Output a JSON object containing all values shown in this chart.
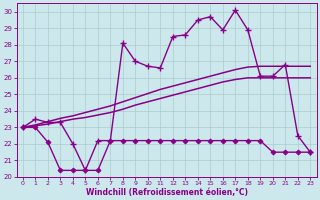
{
  "background_color": "#cde8ec",
  "grid_color": "#aacccc",
  "line_color": "#880088",
  "xlim": [
    -0.5,
    23.5
  ],
  "ylim": [
    20,
    30.5
  ],
  "xlabel": "Windchill (Refroidissement éolien,°C)",
  "yticks": [
    20,
    21,
    22,
    23,
    24,
    25,
    26,
    27,
    28,
    29,
    30
  ],
  "xticks": [
    0,
    1,
    2,
    3,
    4,
    5,
    6,
    7,
    8,
    9,
    10,
    11,
    12,
    13,
    14,
    15,
    16,
    17,
    18,
    19,
    20,
    21,
    22,
    23
  ],
  "series": [
    {
      "x": [
        0,
        1,
        2,
        3,
        4,
        5,
        6,
        7,
        8,
        9,
        10,
        11,
        12,
        13,
        14,
        15,
        16,
        17,
        18,
        19,
        20,
        21,
        22,
        23
      ],
      "y": [
        23.0,
        23.5,
        23.3,
        23.3,
        22.0,
        20.4,
        22.2,
        22.2,
        28.1,
        27.0,
        26.7,
        26.6,
        28.5,
        28.6,
        29.5,
        29.7,
        28.9,
        30.1,
        28.9,
        26.1,
        26.1,
        26.8,
        22.5,
        21.5
      ],
      "marker": "+",
      "linewidth": 1.0,
      "markersize": 4,
      "markeredgewidth": 1.0
    },
    {
      "x": [
        0,
        1,
        2,
        3,
        4,
        5,
        6,
        7,
        8,
        9,
        10,
        11,
        12,
        13,
        14,
        15,
        16,
        17,
        18,
        19,
        20,
        21,
        22,
        23
      ],
      "y": [
        23.0,
        23.0,
        22.1,
        20.4,
        20.4,
        20.4,
        20.4,
        22.2,
        22.2,
        22.2,
        22.2,
        22.2,
        22.2,
        22.2,
        22.2,
        22.2,
        22.2,
        22.2,
        22.2,
        22.2,
        21.5,
        21.5,
        21.5,
        21.5
      ],
      "marker": "D",
      "linewidth": 1.0,
      "markersize": 2.5,
      "markeredgewidth": 0.7
    },
    {
      "x": [
        0,
        1,
        2,
        3,
        4,
        5,
        6,
        7,
        8,
        9,
        10,
        11,
        12,
        13,
        14,
        15,
        16,
        17,
        18,
        19,
        20,
        21,
        22,
        23
      ],
      "y": [
        23.0,
        23.1,
        23.2,
        23.35,
        23.5,
        23.6,
        23.75,
        23.9,
        24.1,
        24.35,
        24.55,
        24.75,
        24.95,
        25.15,
        25.35,
        25.55,
        25.75,
        25.9,
        26.0,
        26.0,
        26.0,
        26.0,
        26.0,
        26.0
      ],
      "marker": null,
      "linewidth": 1.1,
      "markersize": 0,
      "markeredgewidth": 0
    },
    {
      "x": [
        0,
        1,
        2,
        3,
        4,
        5,
        6,
        7,
        8,
        9,
        10,
        11,
        12,
        13,
        14,
        15,
        16,
        17,
        18,
        19,
        20,
        21,
        22,
        23
      ],
      "y": [
        23.0,
        23.15,
        23.35,
        23.55,
        23.7,
        23.9,
        24.1,
        24.3,
        24.55,
        24.8,
        25.05,
        25.3,
        25.5,
        25.7,
        25.9,
        26.1,
        26.3,
        26.5,
        26.65,
        26.7,
        26.7,
        26.7,
        26.7,
        26.7
      ],
      "marker": null,
      "linewidth": 1.1,
      "markersize": 0,
      "markeredgewidth": 0
    }
  ]
}
